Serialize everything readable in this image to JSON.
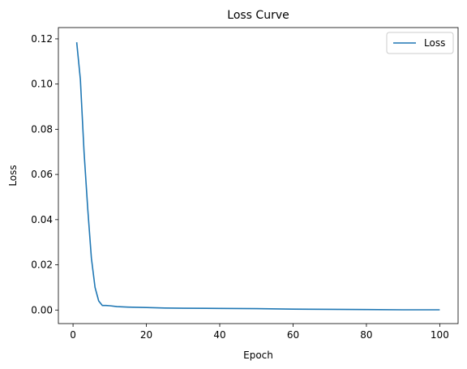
{
  "chart_data": {
    "type": "line",
    "title": "Loss Curve",
    "xlabel": "Epoch",
    "ylabel": "Loss",
    "xlim": [
      -4,
      105
    ],
    "ylim": [
      -0.006,
      0.125
    ],
    "xticks": [
      0,
      20,
      40,
      60,
      80,
      100
    ],
    "yticks": [
      0.0,
      0.02,
      0.04,
      0.06,
      0.08,
      0.1,
      0.12
    ],
    "grid": false,
    "legend_position": "top-right",
    "series": [
      {
        "name": "Loss",
        "color": "#1f77b4",
        "x": [
          1,
          2,
          3,
          4,
          5,
          6,
          7,
          8,
          9,
          10,
          12,
          15,
          20,
          25,
          30,
          40,
          50,
          60,
          70,
          80,
          90,
          100
        ],
        "y": [
          0.1185,
          0.102,
          0.07,
          0.045,
          0.023,
          0.01,
          0.004,
          0.002,
          0.002,
          0.0019,
          0.0015,
          0.0013,
          0.0011,
          0.0009,
          0.0008,
          0.0007,
          0.0006,
          0.0004,
          0.0003,
          0.0002,
          0.0001,
          0.0001
        ]
      }
    ]
  }
}
